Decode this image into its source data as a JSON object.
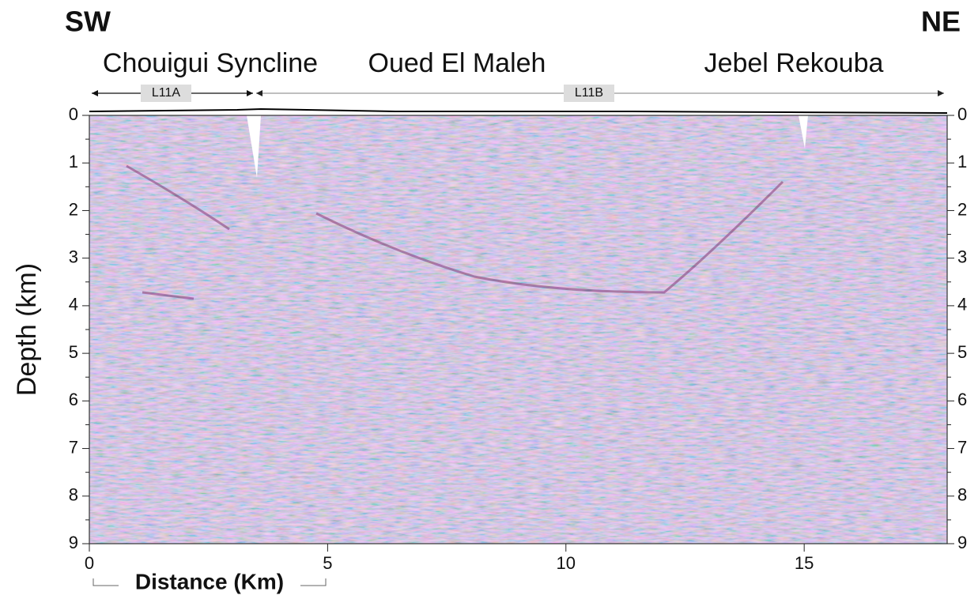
{
  "chart_data": {
    "type": "seismic-section",
    "ends": [
      "SW",
      "NE"
    ],
    "regions": [
      "Chouigui Syncline",
      "Oued El Maleh",
      "Jebel Rekouba"
    ],
    "lines": [
      "L11A",
      "L11B"
    ],
    "xlabel": "Distance (Km)",
    "ylabel": "Depth (km)",
    "xlim": [
      0,
      18
    ],
    "xticks": [
      0,
      5,
      10,
      15
    ],
    "ylim": [
      0,
      9
    ],
    "yticks": [
      0,
      1,
      2,
      3,
      4,
      5,
      6,
      7,
      8,
      9
    ]
  }
}
